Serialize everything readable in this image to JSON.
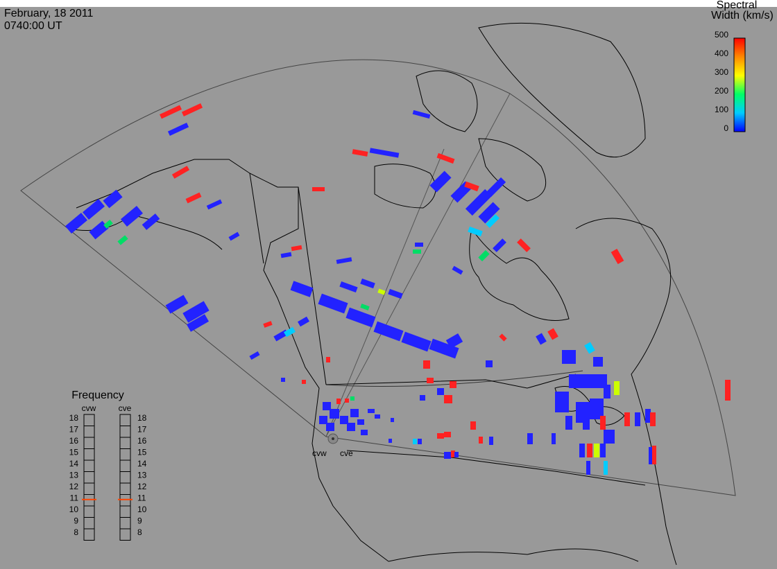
{
  "header": {
    "date": "February, 18 2011",
    "time": "0740:00 UT"
  },
  "colorbar": {
    "title_line1": "Spectral",
    "title_line2": "Width (km/s)",
    "ticks": [
      "500",
      "400",
      "300",
      "200",
      "100",
      "0"
    ]
  },
  "radar_labels": {
    "cvw": "cvw",
    "cve": "cve"
  },
  "frequency": {
    "title": "Frequency",
    "cvw_label": "cvw",
    "cve_label": "cve",
    "scale": [
      "18",
      "17",
      "16",
      "15",
      "14",
      "13",
      "12",
      "11",
      "10",
      "9",
      "8"
    ],
    "cvw_value": 10.8,
    "cve_value": 10.8,
    "marker_color": "#ff4400"
  },
  "colors": {
    "background": "#999999",
    "low": "#2222ff",
    "mid": "#00cc66",
    "high": "#ff2222"
  }
}
